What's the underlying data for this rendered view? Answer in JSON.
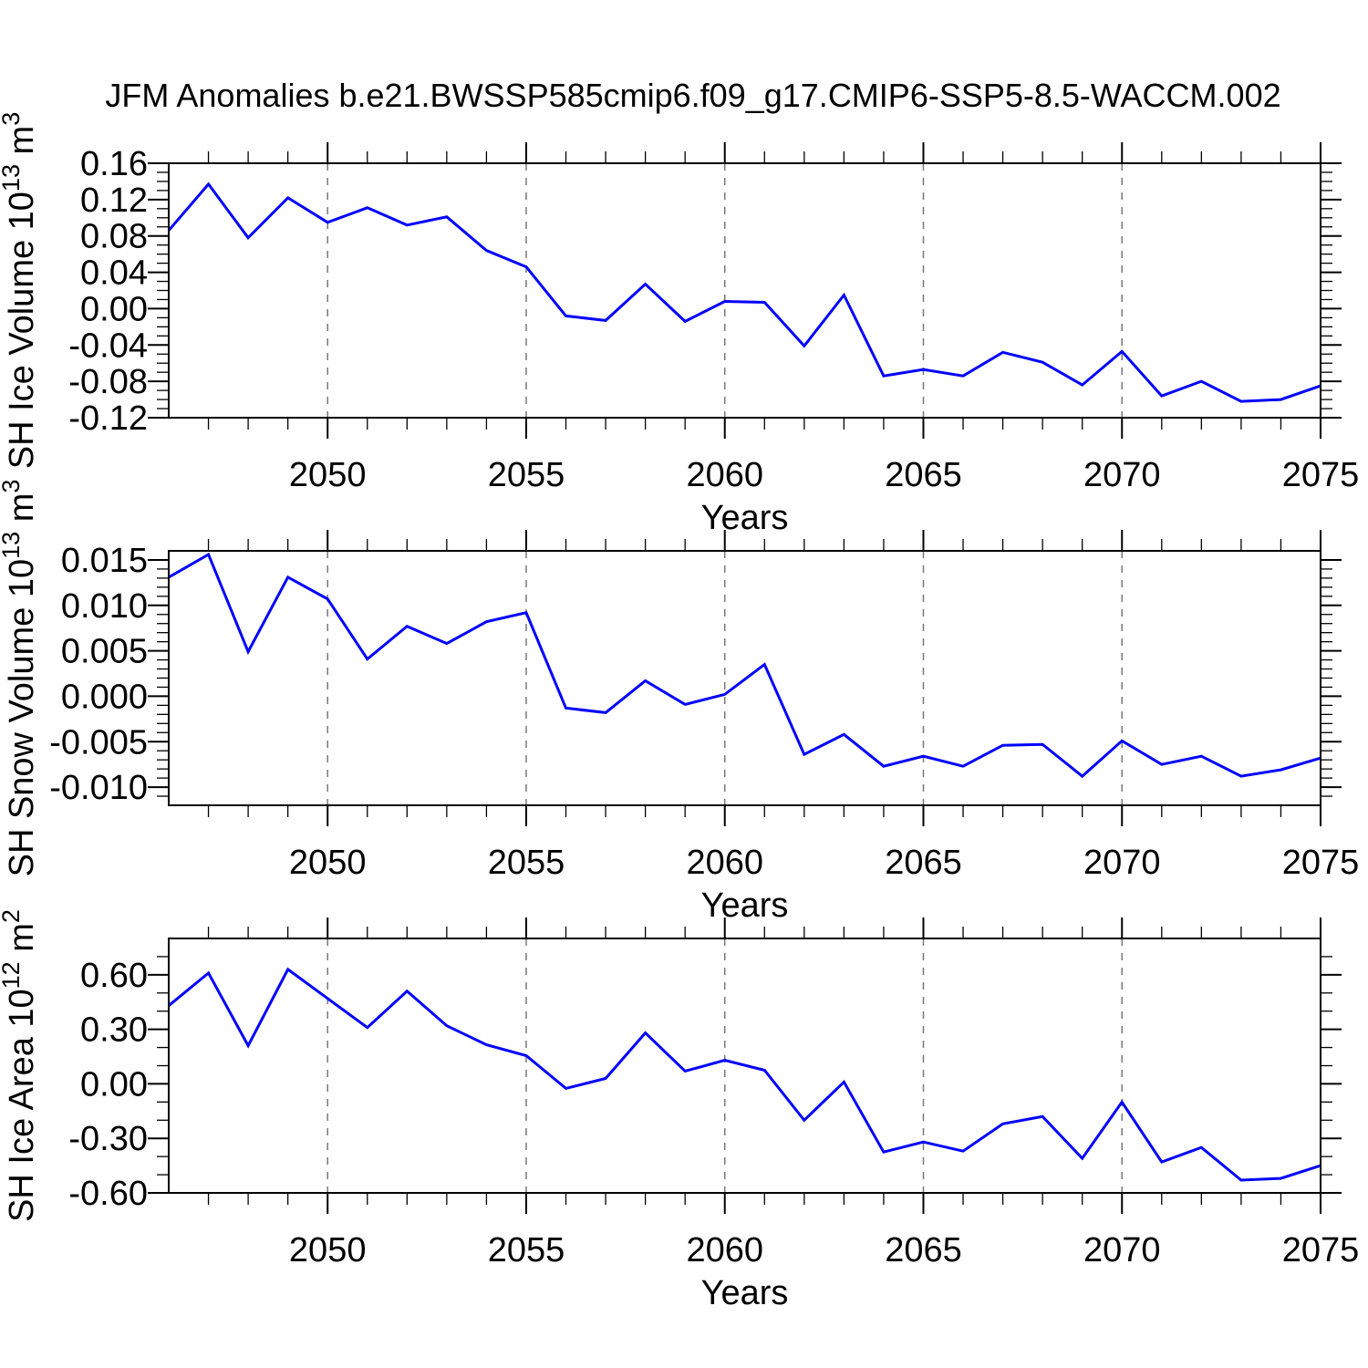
{
  "title": "JFM Anomalies b.e21.BWSSP585cmip6.f09_g17.CMIP6-SSP5-8.5-WACCM.002",
  "colors": {
    "line": "#0000ff",
    "axis": "#000000",
    "grid": "#787878",
    "background": "#ffffff"
  },
  "chart_data": [
    {
      "id": "sh-ice-volume",
      "type": "line",
      "title": "",
      "ylabel": "SH Ice Volume 10^13 m^3",
      "ylabel_main": "SH Ice Volume 10",
      "ylabel_exp": "13",
      "ylabel_unit": " m",
      "ylabel_unit_exp": "3",
      "xlabel": "Years",
      "x": [
        2046,
        2047,
        2048,
        2049,
        2050,
        2051,
        2052,
        2053,
        2054,
        2055,
        2056,
        2057,
        2058,
        2059,
        2060,
        2061,
        2062,
        2063,
        2064,
        2065,
        2066,
        2067,
        2068,
        2069,
        2070,
        2071,
        2072,
        2073,
        2074,
        2075
      ],
      "values": [
        0.086,
        0.137,
        0.078,
        0.122,
        0.095,
        0.111,
        0.092,
        0.101,
        0.064,
        0.046,
        -0.008,
        -0.013,
        0.027,
        -0.014,
        0.008,
        0.007,
        -0.041,
        0.015,
        -0.074,
        -0.067,
        -0.074,
        -0.048,
        -0.059,
        -0.084,
        -0.047,
        -0.096,
        -0.08,
        -0.102,
        -0.1,
        -0.085
      ],
      "ylim": [
        -0.12,
        0.16
      ],
      "yticks": [
        0.16,
        0.12,
        0.08,
        0.04,
        0.0,
        -0.04,
        -0.08,
        -0.12
      ],
      "ytick_labels": [
        "0.16",
        "0.12",
        "0.08",
        "0.04",
        "0.00",
        "-0.04",
        "-0.08",
        "-0.12"
      ],
      "y_minor_step": 0.01,
      "xlim": [
        2046,
        2075
      ],
      "xticks": [
        2050,
        2055,
        2060,
        2065,
        2070,
        2075
      ],
      "xtick_labels": [
        "2050",
        "2055",
        "2060",
        "2065",
        "2070",
        "2075"
      ],
      "x_minor_step": 1,
      "grid_x": [
        2050,
        2055,
        2060,
        2065,
        2070
      ],
      "grid": "vertical-dashed",
      "legend": null
    },
    {
      "id": "sh-snow-volume",
      "type": "line",
      "title": "",
      "ylabel": "SH Snow Volume 10^13 m^3",
      "ylabel_main": "SH Snow Volume 10",
      "ylabel_exp": "13",
      "ylabel_unit": " m",
      "ylabel_unit_exp": "3",
      "xlabel": "Years",
      "x": [
        2046,
        2047,
        2048,
        2049,
        2050,
        2051,
        2052,
        2053,
        2054,
        2055,
        2056,
        2057,
        2058,
        2059,
        2060,
        2061,
        2062,
        2063,
        2064,
        2065,
        2066,
        2067,
        2068,
        2069,
        2070,
        2071,
        2072,
        2073,
        2074,
        2075
      ],
      "values": [
        0.0131,
        0.0156,
        0.0049,
        0.0131,
        0.0107,
        0.0041,
        0.0077,
        0.0058,
        0.0082,
        0.0092,
        -0.0013,
        -0.0018,
        0.0017,
        -0.0009,
        0.0002,
        0.0035,
        -0.0064,
        -0.0042,
        -0.0077,
        -0.0066,
        -0.0077,
        -0.0054,
        -0.0053,
        -0.0088,
        -0.0049,
        -0.0075,
        -0.0066,
        -0.0088,
        -0.0081,
        -0.0068
      ],
      "ylim": [
        -0.012,
        0.016
      ],
      "yticks": [
        0.015,
        0.01,
        0.005,
        0.0,
        -0.005,
        -0.01
      ],
      "ytick_labels": [
        "0.015",
        "0.010",
        "0.005",
        "0.000",
        "-0.005",
        "-0.010"
      ],
      "y_minor_step": 0.001,
      "xlim": [
        2046,
        2075
      ],
      "xticks": [
        2050,
        2055,
        2060,
        2065,
        2070,
        2075
      ],
      "xtick_labels": [
        "2050",
        "2055",
        "2060",
        "2065",
        "2070",
        "2075"
      ],
      "x_minor_step": 1,
      "grid_x": [
        2050,
        2055,
        2060,
        2065,
        2070
      ],
      "grid": "vertical-dashed",
      "legend": null
    },
    {
      "id": "sh-ice-area",
      "type": "line",
      "title": "",
      "ylabel": "SH Ice Area 10^12 m^2",
      "ylabel_main": "SH Ice Area 10",
      "ylabel_exp": "12",
      "ylabel_unit": " m",
      "ylabel_unit_exp": "2",
      "xlabel": "Years",
      "x": [
        2046,
        2047,
        2048,
        2049,
        2050,
        2051,
        2052,
        2053,
        2054,
        2055,
        2056,
        2057,
        2058,
        2059,
        2060,
        2061,
        2062,
        2063,
        2064,
        2065,
        2066,
        2067,
        2068,
        2069,
        2070,
        2071,
        2072,
        2073,
        2074,
        2075
      ],
      "values": [
        0.43,
        0.61,
        0.21,
        0.63,
        0.47,
        0.31,
        0.51,
        0.32,
        0.215,
        0.155,
        -0.025,
        0.03,
        0.28,
        0.07,
        0.13,
        0.075,
        -0.2,
        0.01,
        -0.375,
        -0.32,
        -0.37,
        -0.22,
        -0.18,
        -0.41,
        -0.1,
        -0.43,
        -0.35,
        -0.53,
        -0.52,
        -0.45
      ],
      "ylim": [
        -0.6,
        0.8
      ],
      "yticks": [
        0.6,
        0.3,
        0.0,
        -0.3,
        -0.6
      ],
      "ytick_labels": [
        "0.60",
        "0.30",
        "0.00",
        "-0.30",
        "-0.60"
      ],
      "y_minor_step": 0.1,
      "xlim": [
        2046,
        2075
      ],
      "xticks": [
        2050,
        2055,
        2060,
        2065,
        2070,
        2075
      ],
      "xtick_labels": [
        "2050",
        "2055",
        "2060",
        "2065",
        "2070",
        "2075"
      ],
      "x_minor_step": 1,
      "grid_x": [
        2050,
        2055,
        2060,
        2065,
        2070
      ],
      "grid": "vertical-dashed",
      "legend": null
    }
  ]
}
